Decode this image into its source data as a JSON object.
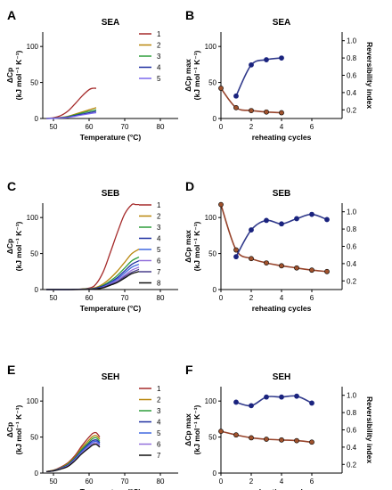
{
  "chart_data": [
    {
      "panel": "A",
      "type": "line",
      "title": "SEA",
      "xlabel": "Temperature (°C)",
      "ylabel_line1": "ΔCp",
      "ylabel_line2": "(kJ mol⁻¹ K⁻¹)",
      "xlim": [
        47,
        85
      ],
      "ylim": [
        0,
        120
      ],
      "xticks": [
        50,
        60,
        70,
        80
      ],
      "yticks": [
        0,
        50,
        100
      ],
      "legend_position": "top-right",
      "series": [
        {
          "name": "1",
          "color": "#a52a2a",
          "x": [
            48,
            50,
            52,
            54,
            56,
            58,
            60,
            61,
            62
          ],
          "y": [
            0,
            1,
            4,
            10,
            20,
            31,
            40,
            42,
            42
          ]
        },
        {
          "name": "2",
          "color": "#b8860b",
          "x": [
            48,
            50,
            52,
            54,
            56,
            58,
            60,
            62
          ],
          "y": [
            0,
            0.5,
            1.5,
            3,
            6,
            9,
            12,
            15
          ]
        },
        {
          "name": "3",
          "color": "#2e9e3a",
          "x": [
            48,
            50,
            52,
            54,
            56,
            58,
            60,
            62
          ],
          "y": [
            0,
            0.5,
            1,
            2.5,
            5,
            7.5,
            10,
            12
          ]
        },
        {
          "name": "4",
          "color": "#1e2fa0",
          "x": [
            48,
            50,
            52,
            54,
            56,
            58,
            60,
            62
          ],
          "y": [
            0,
            0.4,
            1,
            2,
            4,
            6,
            8,
            10
          ]
        },
        {
          "name": "5",
          "color": "#7b68ee",
          "x": [
            48,
            50,
            52,
            54,
            56,
            58,
            60,
            62
          ],
          "y": [
            0,
            0.3,
            0.8,
            1.5,
            3,
            5,
            6.5,
            8
          ]
        }
      ]
    },
    {
      "panel": "B",
      "type": "scatter",
      "title": "SEA",
      "xlabel": "reheating cycles",
      "ylabel_line1": "ΔCp max",
      "ylabel_line2": "(kJ mol⁻¹ K⁻¹)",
      "y2label": "Reversibility index",
      "xlim": [
        0,
        8
      ],
      "ylim": [
        0,
        120
      ],
      "y2lim": [
        0.1,
        1.1
      ],
      "xticks": [
        0,
        2,
        4,
        6
      ],
      "yticks": [
        0,
        50,
        100
      ],
      "y2ticks": [
        0.2,
        0.4,
        0.6,
        0.8,
        1.0
      ],
      "series": [
        {
          "axis": "left",
          "color": "#8b2e12",
          "x": [
            0,
            1,
            2,
            3,
            4
          ],
          "y": [
            42,
            15,
            11,
            9,
            8
          ]
        },
        {
          "axis": "right",
          "color": "#1a237e",
          "x": [
            1,
            2,
            3,
            4
          ],
          "y": [
            0.36,
            0.72,
            0.78,
            0.8
          ]
        }
      ]
    },
    {
      "panel": "C",
      "type": "line",
      "title": "SEB",
      "xlabel": "Temperature (°C)",
      "ylabel_line1": "ΔCp",
      "ylabel_line2": "(kJ mol⁻¹ K⁻¹)",
      "xlim": [
        47,
        85
      ],
      "ylim": [
        0,
        120
      ],
      "xticks": [
        50,
        60,
        70,
        80
      ],
      "yticks": [
        0,
        50,
        100
      ],
      "legend_position": "top-right",
      "series": [
        {
          "name": "1",
          "color": "#a52a2a",
          "x": [
            48,
            55,
            60,
            62,
            64,
            66,
            68,
            70,
            72,
            73,
            74
          ],
          "y": [
            0,
            0,
            2,
            8,
            25,
            52,
            80,
            105,
            118,
            118,
            118
          ]
        },
        {
          "name": "2",
          "color": "#b8860b",
          "x": [
            48,
            55,
            60,
            62,
            64,
            66,
            68,
            70,
            72,
            74
          ],
          "y": [
            0,
            0,
            1,
            3,
            8,
            16,
            26,
            38,
            50,
            56
          ]
        },
        {
          "name": "3",
          "color": "#2e9e3a",
          "x": [
            48,
            55,
            60,
            62,
            64,
            66,
            68,
            70,
            72,
            74
          ],
          "y": [
            0,
            0,
            1,
            2,
            6,
            12,
            20,
            30,
            40,
            45
          ]
        },
        {
          "name": "4",
          "color": "#1e2fa0",
          "x": [
            48,
            55,
            60,
            62,
            64,
            66,
            68,
            70,
            72,
            74
          ],
          "y": [
            0,
            0,
            0.8,
            2,
            5,
            10,
            17,
            26,
            35,
            40
          ]
        },
        {
          "name": "5",
          "color": "#4169e1",
          "x": [
            48,
            55,
            60,
            62,
            64,
            66,
            68,
            70,
            72,
            74
          ],
          "y": [
            0,
            0,
            0.6,
            1.5,
            4,
            9,
            15,
            23,
            31,
            35
          ]
        },
        {
          "name": "6",
          "color": "#9370db",
          "x": [
            48,
            55,
            60,
            62,
            64,
            66,
            68,
            70,
            72,
            74
          ],
          "y": [
            0,
            0,
            0.5,
            1.2,
            3.5,
            8,
            13,
            20,
            27,
            31
          ]
        },
        {
          "name": "7",
          "color": "#483d8b",
          "x": [
            48,
            55,
            60,
            62,
            64,
            66,
            68,
            70,
            72,
            74
          ],
          "y": [
            0,
            0,
            0.4,
            1,
            3,
            7,
            11,
            18,
            24,
            28
          ]
        },
        {
          "name": "8",
          "color": "#111111",
          "x": [
            48,
            55,
            60,
            62,
            64,
            66,
            68,
            70,
            72,
            74
          ],
          "y": [
            0,
            0,
            0.3,
            1,
            2.5,
            6,
            10,
            16,
            22,
            25
          ]
        }
      ]
    },
    {
      "panel": "D",
      "type": "scatter",
      "title": "SEB",
      "xlabel": "reheating cycles",
      "ylabel_line1": "ΔCp max",
      "ylabel_line2": "(kJ mol⁻¹ K⁻¹)",
      "y2label": "",
      "xlim": [
        0,
        8
      ],
      "ylim": [
        0,
        120
      ],
      "y2lim": [
        0.1,
        1.1
      ],
      "xticks": [
        0,
        2,
        4,
        6
      ],
      "yticks": [
        0,
        50,
        100
      ],
      "y2ticks": [
        0.2,
        0.4,
        0.6,
        0.8,
        1.0
      ],
      "series": [
        {
          "axis": "left",
          "color": "#8b2e12",
          "x": [
            0,
            1,
            2,
            3,
            4,
            5,
            6,
            7
          ],
          "y": [
            118,
            55,
            43,
            37,
            33,
            30,
            27,
            25
          ]
        },
        {
          "axis": "right",
          "color": "#1a237e",
          "x": [
            1,
            2,
            3,
            4,
            5,
            6,
            7
          ],
          "y": [
            0.48,
            0.79,
            0.9,
            0.86,
            0.92,
            0.97,
            0.91
          ]
        }
      ]
    },
    {
      "panel": "E",
      "type": "line",
      "title": "SEH",
      "xlabel": "Temperature (°C)",
      "ylabel_line1": "ΔCp",
      "ylabel_line2": "(kJ mol⁻¹ K⁻¹)",
      "xlim": [
        47,
        85
      ],
      "ylim": [
        0,
        120
      ],
      "xticks": [
        50,
        60,
        70,
        80
      ],
      "yticks": [
        0,
        50,
        100
      ],
      "legend_position": "top-right",
      "series": [
        {
          "name": "1",
          "color": "#a52a2a",
          "x": [
            48,
            50,
            52,
            54,
            56,
            58,
            60,
            61,
            62,
            63
          ],
          "y": [
            2,
            4,
            8,
            14,
            24,
            38,
            50,
            55,
            56,
            50
          ]
        },
        {
          "name": "2",
          "color": "#b8860b",
          "x": [
            48,
            50,
            52,
            54,
            56,
            58,
            60,
            61,
            62,
            63
          ],
          "y": [
            2,
            4,
            7,
            13,
            22,
            35,
            46,
            51,
            52,
            47
          ]
        },
        {
          "name": "3",
          "color": "#2e9e3a",
          "x": [
            48,
            50,
            52,
            54,
            56,
            58,
            60,
            61,
            62,
            63
          ],
          "y": [
            2,
            3.5,
            7,
            12,
            21,
            33,
            43,
            48,
            49,
            44
          ]
        },
        {
          "name": "4",
          "color": "#1e2fa0",
          "x": [
            48,
            50,
            52,
            54,
            56,
            58,
            60,
            61,
            62,
            63
          ],
          "y": [
            2,
            3.5,
            6.5,
            11,
            20,
            31,
            41,
            45,
            46,
            42
          ]
        },
        {
          "name": "5",
          "color": "#4169e1",
          "x": [
            48,
            50,
            52,
            54,
            56,
            58,
            60,
            61,
            62,
            63
          ],
          "y": [
            2,
            3,
            6,
            10,
            19,
            30,
            39,
            43,
            44,
            40
          ]
        },
        {
          "name": "6",
          "color": "#9370db",
          "x": [
            48,
            50,
            52,
            54,
            56,
            58,
            60,
            61,
            62,
            63
          ],
          "y": [
            2,
            3,
            6,
            10,
            18,
            28,
            37,
            41,
            42,
            38
          ]
        },
        {
          "name": "7",
          "color": "#111111",
          "x": [
            48,
            50,
            52,
            54,
            56,
            58,
            60,
            61,
            62,
            63
          ],
          "y": [
            2,
            3,
            5.5,
            9,
            17,
            27,
            35,
            39,
            40,
            36
          ]
        }
      ]
    },
    {
      "panel": "F",
      "type": "scatter",
      "title": "SEH",
      "xlabel": "reheating cycles",
      "ylabel_line1": "ΔCp max",
      "ylabel_line2": "(kJ mol⁻¹ K⁻¹)",
      "y2label": "Reversibility index",
      "xlim": [
        0,
        8
      ],
      "ylim": [
        0,
        120
      ],
      "y2lim": [
        0.1,
        1.1
      ],
      "xticks": [
        0,
        2,
        4,
        6
      ],
      "yticks": [
        0,
        50,
        100
      ],
      "y2ticks": [
        0.2,
        0.4,
        0.6,
        0.8,
        1.0
      ],
      "series": [
        {
          "axis": "left",
          "color": "#8b2e12",
          "x": [
            0,
            1,
            2,
            3,
            4,
            5,
            6
          ],
          "y": [
            58,
            53,
            49,
            47,
            46,
            45,
            43
          ]
        },
        {
          "axis": "right",
          "color": "#1a237e",
          "x": [
            1,
            2,
            3,
            4,
            5,
            6
          ],
          "y": [
            0.92,
            0.88,
            0.98,
            0.98,
            0.99,
            0.91
          ]
        }
      ]
    }
  ]
}
